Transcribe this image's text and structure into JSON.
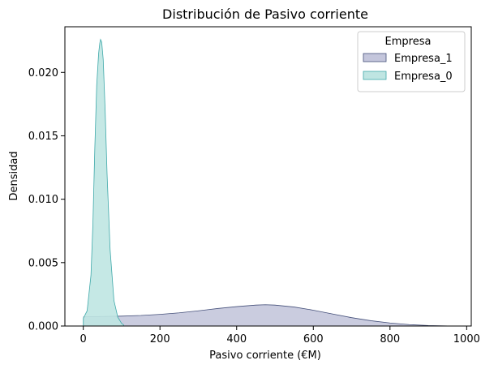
{
  "chart_data": {
    "type": "area",
    "title": "Distribución de Pasivo corriente",
    "xlabel": "Pasivo corriente (€M)",
    "ylabel": "Densidad",
    "xlim": [
      -48,
      1012
    ],
    "ylim": [
      0,
      0.0236
    ],
    "x_ticks": [
      0,
      200,
      400,
      600,
      800,
      1000
    ],
    "x_tick_labels": [
      "0",
      "200",
      "400",
      "600",
      "800",
      "1000"
    ],
    "y_ticks": [
      0.0,
      0.005,
      0.01,
      0.015,
      0.02
    ],
    "y_tick_labels": [
      "0.000",
      "0.005",
      "0.010",
      "0.015",
      "0.020"
    ],
    "grid": false,
    "legend": {
      "title": "Empresa",
      "placement": "top-right",
      "entries": [
        "Empresa_1",
        "Empresa_0"
      ]
    },
    "series": [
      {
        "name": "Empresa_1",
        "fill": "#c4c6dc",
        "stroke": "#45507a",
        "x": [
          1,
          50,
          100,
          150,
          200,
          250,
          300,
          350,
          400,
          450,
          475,
          500,
          550,
          600,
          650,
          700,
          750,
          800,
          850,
          900,
          950,
          970
        ],
        "y": [
          0.00072,
          0.00075,
          0.00078,
          0.00083,
          0.00092,
          0.00104,
          0.0012,
          0.00138,
          0.00153,
          0.00165,
          0.00168,
          0.00165,
          0.0015,
          0.00125,
          0.00095,
          0.00066,
          0.00042,
          0.00024,
          0.00011,
          4e-05,
          1e-05,
          0.0
        ]
      },
      {
        "name": "Empresa_0",
        "fill": "#bfe5e2",
        "stroke": "#3fa9aa",
        "x": [
          0,
          10,
          20,
          25,
          30,
          35,
          40,
          43,
          45,
          48,
          52,
          57,
          62,
          70,
          80,
          90,
          100,
          105
        ],
        "y": [
          0.0006,
          0.0012,
          0.004,
          0.008,
          0.014,
          0.019,
          0.0215,
          0.0223,
          0.0226,
          0.0224,
          0.021,
          0.017,
          0.012,
          0.006,
          0.002,
          0.0007,
          0.0002,
          0.0001
        ]
      }
    ]
  }
}
